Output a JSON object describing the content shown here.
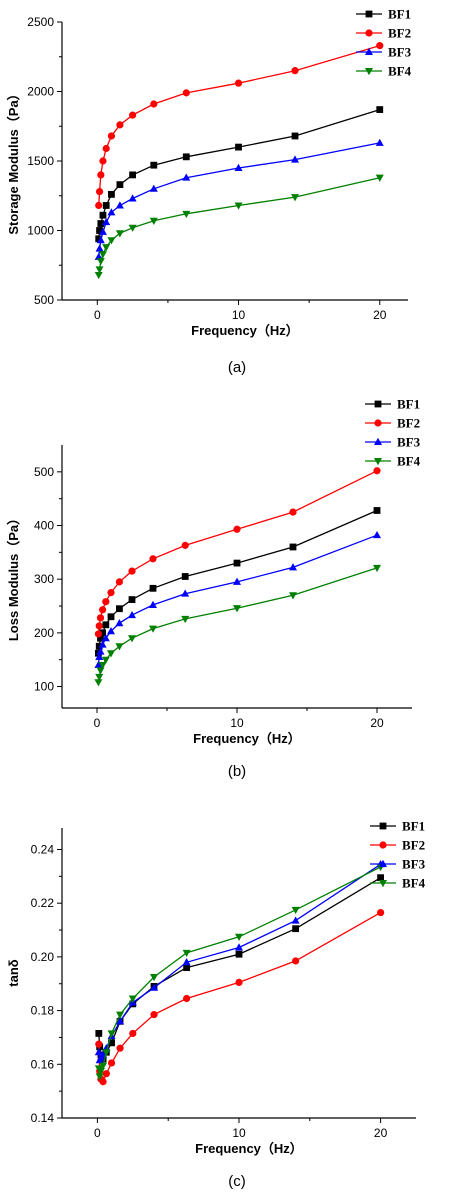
{
  "legend_colors": {
    "BF1": "#000000",
    "BF2": "#ff0000",
    "BF3": "#0000ff",
    "BF4": "#008000"
  },
  "chart_data": [
    {
      "type": "line",
      "caption": "(a)",
      "xlabel": "Frequency（Hz）",
      "ylabel": "Storage Modulus（Pa）",
      "xlim": [
        -2.5,
        22
      ],
      "ylim": [
        500,
        2500
      ],
      "xticks": [
        0,
        10,
        20
      ],
      "xtick_labels": [
        "0",
        "10",
        "20"
      ],
      "yticks": [
        500,
        1000,
        1500,
        2000,
        2500
      ],
      "ytick_labels": [
        "500",
        "1000",
        "1500",
        "2000",
        "2500"
      ],
      "legend_position": "top-right",
      "x": [
        0.1,
        0.16,
        0.25,
        0.4,
        0.63,
        1,
        1.6,
        2.5,
        4,
        6.3,
        10,
        14,
        20
      ],
      "series": [
        {
          "name": "BF1",
          "marker": "square",
          "values": [
            940,
            1000,
            1050,
            1110,
            1180,
            1260,
            1330,
            1400,
            1470,
            1530,
            1600,
            1680,
            1870
          ]
        },
        {
          "name": "BF2",
          "marker": "circle",
          "values": [
            1180,
            1280,
            1400,
            1500,
            1590,
            1680,
            1760,
            1830,
            1910,
            1990,
            2060,
            2150,
            2330
          ]
        },
        {
          "name": "BF3",
          "marker": "triangle-up",
          "values": [
            810,
            870,
            930,
            990,
            1060,
            1130,
            1180,
            1230,
            1300,
            1380,
            1450,
            1510,
            1630
          ]
        },
        {
          "name": "BF4",
          "marker": "triangle-down",
          "values": [
            680,
            720,
            780,
            830,
            880,
            930,
            980,
            1020,
            1070,
            1120,
            1180,
            1240,
            1380
          ]
        }
      ]
    },
    {
      "type": "line",
      "caption": "(b)",
      "xlabel": "Frequency（Hz）",
      "ylabel": "Loss Modulus（Pa）",
      "xlim": [
        -2.5,
        22.5
      ],
      "ylim": [
        60,
        550
      ],
      "xticks": [
        0,
        10,
        20
      ],
      "xtick_labels": [
        "0",
        "10",
        "20"
      ],
      "yticks": [
        100,
        200,
        300,
        400,
        500
      ],
      "ytick_labels": [
        "100",
        "200",
        "300",
        "400",
        "500"
      ],
      "legend_position": "top-right",
      "x": [
        0.1,
        0.16,
        0.25,
        0.4,
        0.63,
        1,
        1.6,
        2.5,
        4,
        6.3,
        10,
        14,
        20
      ],
      "series": [
        {
          "name": "BF1",
          "marker": "square",
          "values": [
            162,
            175,
            190,
            200,
            215,
            230,
            245,
            262,
            283,
            305,
            330,
            360,
            428
          ]
        },
        {
          "name": "BF2",
          "marker": "circle",
          "values": [
            198,
            213,
            228,
            243,
            258,
            275,
            295,
            315,
            338,
            363,
            393,
            425,
            502
          ]
        },
        {
          "name": "BF3",
          "marker": "triangle-up",
          "values": [
            140,
            155,
            165,
            178,
            190,
            203,
            218,
            233,
            252,
            273,
            295,
            322,
            382
          ]
        },
        {
          "name": "BF4",
          "marker": "triangle-down",
          "values": [
            108,
            118,
            130,
            140,
            150,
            162,
            175,
            190,
            208,
            226,
            246,
            270,
            321
          ]
        }
      ]
    },
    {
      "type": "line",
      "caption": "(c)",
      "xlabel": "Frequency（Hz）",
      "ylabel": "tanδ",
      "xlim": [
        -2.5,
        22.5
      ],
      "ylim": [
        0.14,
        0.248
      ],
      "xticks": [
        0,
        10,
        20
      ],
      "xtick_labels": [
        "0",
        "10",
        "20"
      ],
      "yticks": [
        0.14,
        0.16,
        0.18,
        0.2,
        0.22,
        0.24
      ],
      "ytick_labels": [
        "0.14",
        "0.16",
        "0.18",
        "0.20",
        "0.22",
        "0.24"
      ],
      "legend_position": "top-right",
      "x": [
        0.1,
        0.16,
        0.25,
        0.4,
        0.63,
        1,
        1.6,
        2.5,
        4,
        6.3,
        10,
        14,
        20
      ],
      "series": [
        {
          "name": "BF1",
          "marker": "square",
          "values": [
            0.1715,
            0.1665,
            0.1635,
            0.162,
            0.1645,
            0.168,
            0.176,
            0.1825,
            0.189,
            0.196,
            0.201,
            0.2105,
            0.2295
          ]
        },
        {
          "name": "BF2",
          "marker": "circle",
          "values": [
            0.1675,
            0.1575,
            0.1545,
            0.1535,
            0.1565,
            0.1605,
            0.166,
            0.1715,
            0.1785,
            0.1845,
            0.1905,
            0.1985,
            0.2165
          ]
        },
        {
          "name": "BF3",
          "marker": "triangle-up",
          "values": [
            0.1645,
            0.1615,
            0.1625,
            0.1635,
            0.166,
            0.1705,
            0.176,
            0.183,
            0.1885,
            0.198,
            0.2035,
            0.2135,
            0.2345
          ]
        },
        {
          "name": "BF4",
          "marker": "triangle-down",
          "values": [
            0.1585,
            0.1555,
            0.1575,
            0.1595,
            0.1645,
            0.1715,
            0.1785,
            0.1845,
            0.1925,
            0.2015,
            0.2075,
            0.2175,
            0.2335
          ]
        }
      ]
    }
  ]
}
